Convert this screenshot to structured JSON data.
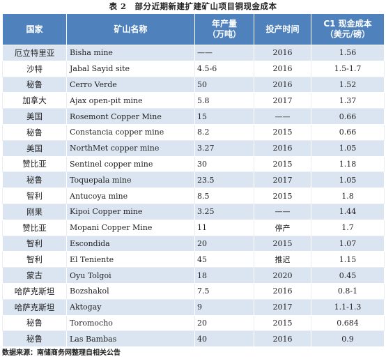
{
  "title": "表 2　部分近期新建扩建矿山项目铜现金成本",
  "headers": {
    "country": "国家",
    "mine": "矿山名称",
    "output_line1": "年产量",
    "output_line2": "（万吨）",
    "year": "投产时间",
    "cost_line1": "C1 现金成本",
    "cost_line2": "（美元/磅）"
  },
  "rows": [
    {
      "country": "厄立特里亚",
      "mine": "Bisha mine",
      "output": "——",
      "year": "2016",
      "cost": "1.56"
    },
    {
      "country": "沙特",
      "mine": "Jabal Sayid site",
      "output": "4.5-6",
      "year": "2016",
      "cost": "1.5-1.7"
    },
    {
      "country": "秘鲁",
      "mine": "Cerro Verde",
      "output": "50",
      "year": "2016",
      "cost": "1.52"
    },
    {
      "country": "加拿大",
      "mine": "Ajax open-pit mine",
      "output": "5.8",
      "year": "2017",
      "cost": "1.37"
    },
    {
      "country": "美国",
      "mine": "Rosemont Copper Mine",
      "output": "15",
      "year": "——",
      "cost": "0.66"
    },
    {
      "country": "秘鲁",
      "mine": "Constancia copper mine",
      "output": "8.2",
      "year": "2015",
      "cost": "0.66"
    },
    {
      "country": "美国",
      "mine": "NorthMet copper mine",
      "output": "3.27",
      "year": "2016",
      "cost": "1.05"
    },
    {
      "country": "赞比亚",
      "mine": "Sentinel copper mine",
      "output": "30",
      "year": "2015",
      "cost": "1.18"
    },
    {
      "country": "秘鲁",
      "mine": "Toquepala mine",
      "output": "23.5",
      "year": "2017",
      "cost": "1.05"
    },
    {
      "country": "智利",
      "mine": "Antucoya mine",
      "output": "8.5",
      "year": "2015",
      "cost": "1.8"
    },
    {
      "country": "刚果",
      "mine": "Kipoi Copper mine",
      "output": "3.25",
      "year": "——",
      "cost": "1.44"
    },
    {
      "country": "赞比亚",
      "mine": "Mopani Copper Mine",
      "output": "11",
      "year": "停产",
      "cost": "1.7"
    },
    {
      "country": "智利",
      "mine": "Escondida",
      "output": "20",
      "year": "2015",
      "cost": "1.07"
    },
    {
      "country": "智利",
      "mine": "El Teniente",
      "output": "45",
      "year": "推迟",
      "cost": "1.15"
    },
    {
      "country": "蒙古",
      "mine": "Oyu Tolgoi",
      "output": "18",
      "year": "2020",
      "cost": "0.45"
    },
    {
      "country": "哈萨克斯坦",
      "mine": "Bozshakol",
      "output": "7.5",
      "year": "2016",
      "cost": "0.8-1"
    },
    {
      "country": "哈萨克斯坦",
      "mine": "Aktogay",
      "output": "9",
      "year": "2017",
      "cost": "1.1-1.3"
    },
    {
      "country": "秘鲁",
      "mine": "Toromocho",
      "output": "20",
      "year": "2015",
      "cost": "0.684"
    },
    {
      "country": "秘鲁",
      "mine": "Las Bambas",
      "output": "40",
      "year": "2016",
      "cost": "0.9"
    }
  ],
  "source": "数据来源：南储商务网整理自相关公告"
}
